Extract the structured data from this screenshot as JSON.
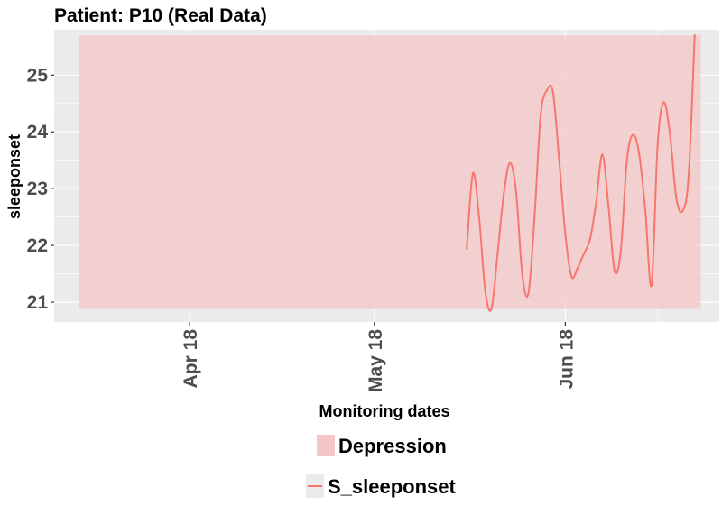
{
  "chart_data": {
    "type": "line",
    "title": "Patient: P10 (Real Data)",
    "xlabel": "Monitoring dates",
    "ylabel": "sleeponset",
    "x_tick_labels": [
      {
        "date": "2018-04-01",
        "label": "Apr 18"
      },
      {
        "date": "2018-05-01",
        "label": "May 18"
      },
      {
        "date": "2018-06-01",
        "label": "Jun 18"
      }
    ],
    "y_ticks": [
      21,
      22,
      23,
      24,
      25
    ],
    "xlim": [
      "2018-03-10",
      "2018-06-26"
    ],
    "ylim": [
      20.65,
      25.8
    ],
    "grid": true,
    "background": "#ebebeb",
    "legend_position": "bottom",
    "regions": [
      {
        "name": "Depression",
        "x_start": "2018-03-14",
        "x_end": "2018-06-23",
        "y_start": 20.88,
        "y_end": 25.7,
        "color": "#f4c7c7"
      }
    ],
    "series": [
      {
        "name": "S_sleeponset",
        "color": "#f8766d",
        "points": [
          {
            "x": "2018-05-16",
            "y": 21.95
          },
          {
            "x": "2018-05-17",
            "y": 23.27
          },
          {
            "x": "2018-05-18",
            "y": 22.5
          },
          {
            "x": "2018-05-19",
            "y": 21.2
          },
          {
            "x": "2018-05-20",
            "y": 20.88
          },
          {
            "x": "2018-05-21",
            "y": 21.85
          },
          {
            "x": "2018-05-22",
            "y": 22.9
          },
          {
            "x": "2018-05-23",
            "y": 23.45
          },
          {
            "x": "2018-05-24",
            "y": 22.95
          },
          {
            "x": "2018-05-25",
            "y": 21.5
          },
          {
            "x": "2018-05-26",
            "y": 21.15
          },
          {
            "x": "2018-05-27",
            "y": 22.5
          },
          {
            "x": "2018-05-28",
            "y": 24.3
          },
          {
            "x": "2018-05-29",
            "y": 24.73
          },
          {
            "x": "2018-05-30",
            "y": 24.7
          },
          {
            "x": "2018-05-31",
            "y": 23.5
          },
          {
            "x": "2018-06-01",
            "y": 22.2
          },
          {
            "x": "2018-06-02",
            "y": 21.45
          },
          {
            "x": "2018-06-03",
            "y": 21.6
          },
          {
            "x": "2018-06-04",
            "y": 21.85
          },
          {
            "x": "2018-06-05",
            "y": 22.1
          },
          {
            "x": "2018-06-06",
            "y": 22.75
          },
          {
            "x": "2018-06-07",
            "y": 23.6
          },
          {
            "x": "2018-06-08",
            "y": 22.7
          },
          {
            "x": "2018-06-09",
            "y": 21.55
          },
          {
            "x": "2018-06-10",
            "y": 21.9
          },
          {
            "x": "2018-06-11",
            "y": 23.5
          },
          {
            "x": "2018-06-12",
            "y": 23.95
          },
          {
            "x": "2018-06-13",
            "y": 23.6
          },
          {
            "x": "2018-06-14",
            "y": 22.6
          },
          {
            "x": "2018-06-15",
            "y": 21.3
          },
          {
            "x": "2018-06-16",
            "y": 23.8
          },
          {
            "x": "2018-06-17",
            "y": 24.52
          },
          {
            "x": "2018-06-18",
            "y": 23.95
          },
          {
            "x": "2018-06-19",
            "y": 22.85
          },
          {
            "x": "2018-06-20",
            "y": 22.6
          },
          {
            "x": "2018-06-21",
            "y": 23.2
          },
          {
            "x": "2018-06-22",
            "y": 25.7
          }
        ]
      }
    ]
  },
  "legend": {
    "region_label": "Depression",
    "series_label": "S_sleeponset"
  }
}
